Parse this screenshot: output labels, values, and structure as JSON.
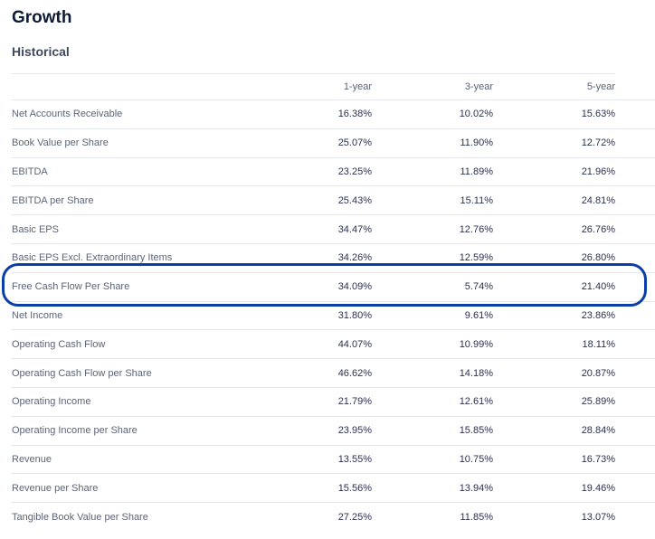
{
  "title": "Growth",
  "section": "Historical",
  "highlight_color": "#0a3fa8",
  "columns": [
    "",
    "1-year",
    "3-year",
    "5-year"
  ],
  "rows": [
    {
      "label": "Net Accounts Receivable",
      "y1": "16.38%",
      "y3": "10.02%",
      "y5": "15.63%"
    },
    {
      "label": "Book Value per Share",
      "y1": "25.07%",
      "y3": "11.90%",
      "y5": "12.72%"
    },
    {
      "label": "EBITDA",
      "y1": "23.25%",
      "y3": "11.89%",
      "y5": "21.96%"
    },
    {
      "label": "EBITDA per Share",
      "y1": "25.43%",
      "y3": "15.11%",
      "y5": "24.81%"
    },
    {
      "label": "Basic EPS",
      "y1": "34.47%",
      "y3": "12.76%",
      "y5": "26.76%"
    },
    {
      "label": "Basic EPS Excl. Extraordinary Items",
      "y1": "34.26%",
      "y3": "12.59%",
      "y5": "26.80%"
    },
    {
      "label": "Free Cash Flow Per Share",
      "y1": "34.09%",
      "y3": "5.74%",
      "y5": "21.40%",
      "highlighted": true
    },
    {
      "label": "Net Income",
      "y1": "31.80%",
      "y3": "9.61%",
      "y5": "23.86%"
    },
    {
      "label": "Operating Cash Flow",
      "y1": "44.07%",
      "y3": "10.99%",
      "y5": "18.11%"
    },
    {
      "label": "Operating Cash Flow per Share",
      "y1": "46.62%",
      "y3": "14.18%",
      "y5": "20.87%"
    },
    {
      "label": "Operating Income",
      "y1": "21.79%",
      "y3": "12.61%",
      "y5": "25.89%"
    },
    {
      "label": "Operating Income per Share",
      "y1": "23.95%",
      "y3": "15.85%",
      "y5": "28.84%"
    },
    {
      "label": "Revenue",
      "y1": "13.55%",
      "y3": "10.75%",
      "y5": "16.73%"
    },
    {
      "label": "Revenue per Share",
      "y1": "15.56%",
      "y3": "13.94%",
      "y5": "19.46%"
    },
    {
      "label": "Tangible Book Value per Share",
      "y1": "27.25%",
      "y3": "11.85%",
      "y5": "13.07%"
    }
  ]
}
